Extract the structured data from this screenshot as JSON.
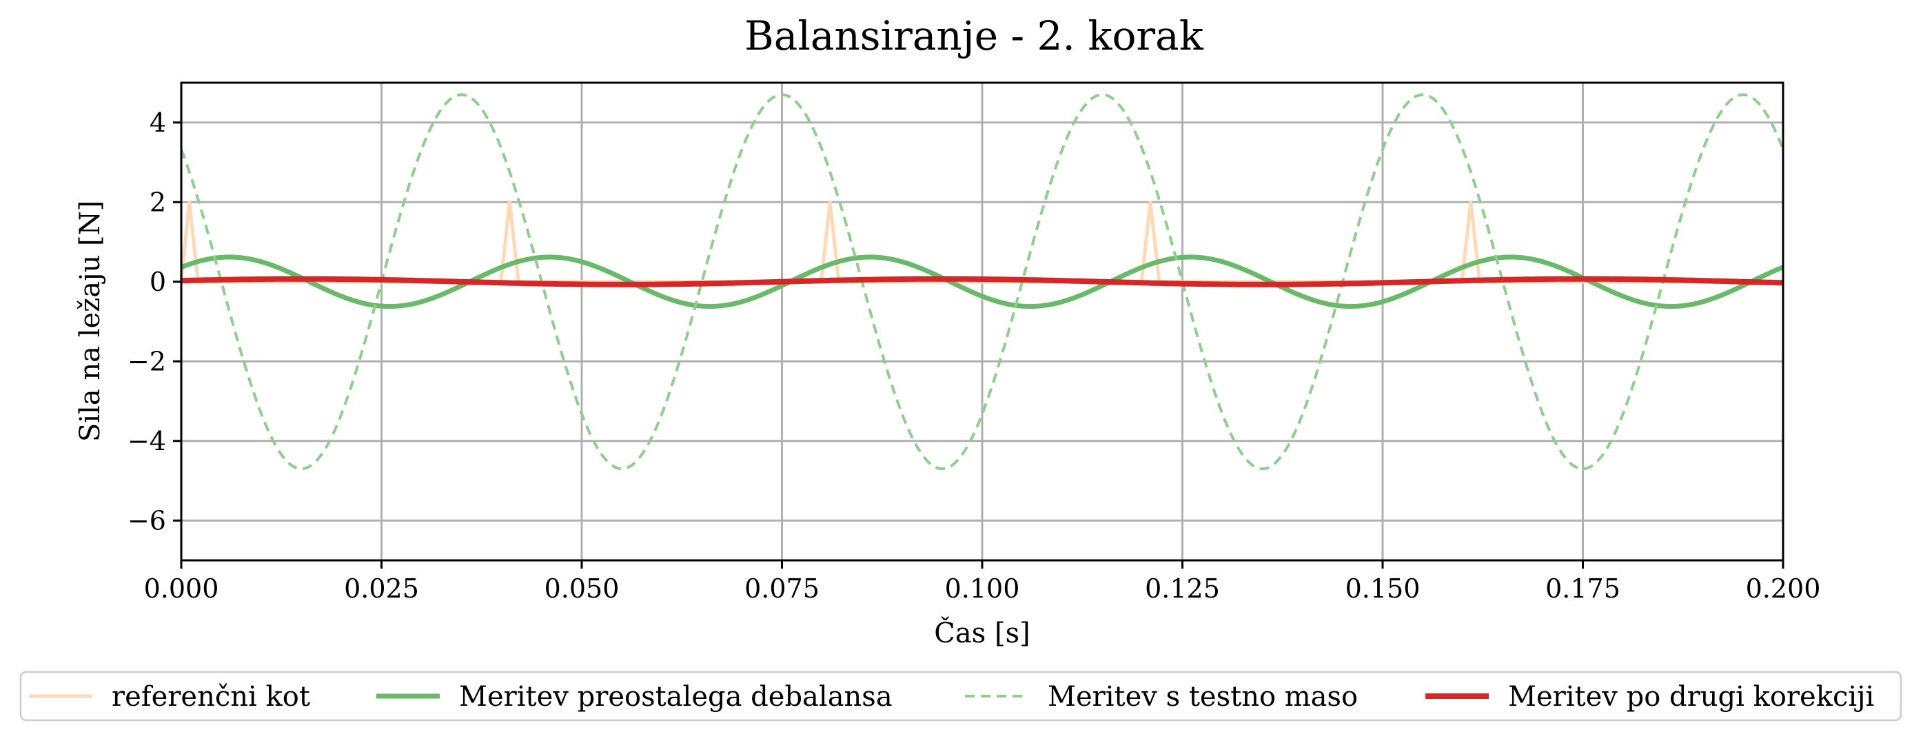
{
  "chart_data": {
    "type": "line",
    "title": "Balansiranje - 2. korak",
    "xlabel": "Čas [s]",
    "ylabel": "Sila na ležaju [N]",
    "xlim": [
      0.0,
      0.2
    ],
    "ylim": [
      -7,
      5
    ],
    "xticks": [
      0.0,
      0.025,
      0.05,
      0.075,
      0.1,
      0.125,
      0.15,
      0.175,
      0.2
    ],
    "xtick_labels": [
      "0.000",
      "0.025",
      "0.050",
      "0.075",
      "0.100",
      "0.125",
      "0.150",
      "0.175",
      "0.200"
    ],
    "yticks": [
      4,
      2,
      0,
      -2,
      -4,
      -6
    ],
    "ytick_labels": [
      "4",
      "2",
      "0",
      "−2",
      "−4",
      "−6"
    ],
    "grid": true,
    "legend_position": "bottom, below axes",
    "series": [
      {
        "name": "referenčni kot",
        "color": "#fdd9b5",
        "style": "solid",
        "kind": "pulse",
        "pulse_times": [
          0.001,
          0.041,
          0.081,
          0.121,
          0.161
        ],
        "pulse_height": 2.0,
        "baseline": 0
      },
      {
        "name": "Meritev preostalega debalansa",
        "color": "#6ab96a",
        "style": "solid",
        "kind": "sine",
        "amplitude": 0.62,
        "frequency_hz": 25,
        "first_peak_s": 0.006,
        "offset": 0
      },
      {
        "name": "Meritev s testno maso",
        "color": "#8ecf8e",
        "style": "dashed",
        "kind": "sine",
        "amplitude": 4.7,
        "frequency_hz": 25,
        "first_peak_s": 0.035,
        "offset": 0
      },
      {
        "name": "Meritev po drugi korekciji",
        "color": "#d62728",
        "style": "solid",
        "kind": "sine",
        "amplitude": 0.07,
        "frequency_hz": 12.5,
        "first_peak_s": 0.015,
        "offset": 0
      }
    ]
  }
}
